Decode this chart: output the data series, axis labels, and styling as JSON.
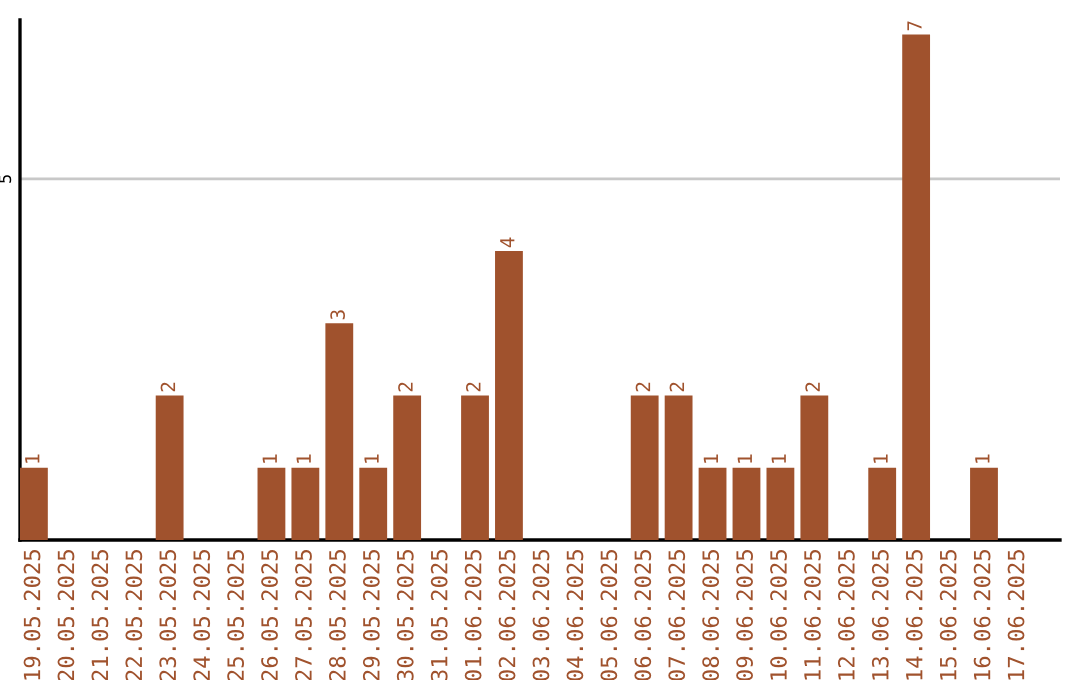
{
  "chart_data": {
    "type": "bar",
    "categories": [
      "19.05.2025",
      "20.05.2025",
      "21.05.2025",
      "22.05.2025",
      "23.05.2025",
      "24.05.2025",
      "25.05.2025",
      "26.05.2025",
      "27.05.2025",
      "28.05.2025",
      "29.05.2025",
      "30.05.2025",
      "31.05.2025",
      "01.06.2025",
      "02.06.2025",
      "03.06.2025",
      "04.06.2025",
      "05.06.2025",
      "06.06.2025",
      "07.06.2025",
      "08.06.2025",
      "09.06.2025",
      "10.06.2025",
      "11.06.2025",
      "12.06.2025",
      "13.06.2025",
      "14.06.2025",
      "15.06.2025",
      "16.06.2025",
      "17.06.2025"
    ],
    "values": [
      1,
      0,
      0,
      0,
      2,
      0,
      0,
      1,
      1,
      3,
      1,
      2,
      0,
      2,
      4,
      0,
      0,
      0,
      2,
      2,
      1,
      1,
      1,
      2,
      0,
      1,
      7,
      0,
      1,
      0
    ],
    "value_labels": [
      "1",
      null,
      null,
      null,
      "2",
      null,
      null,
      "1",
      "1",
      "3",
      "1",
      "2",
      null,
      "2",
      "4",
      null,
      null,
      null,
      "2",
      "2",
      "1",
      "1",
      "1",
      "2",
      null,
      "1",
      "7",
      null,
      "1",
      null
    ],
    "color": "#a0522d",
    "ylim": [
      0,
      7.2
    ],
    "yticks": [
      5
    ],
    "grid": "y"
  }
}
